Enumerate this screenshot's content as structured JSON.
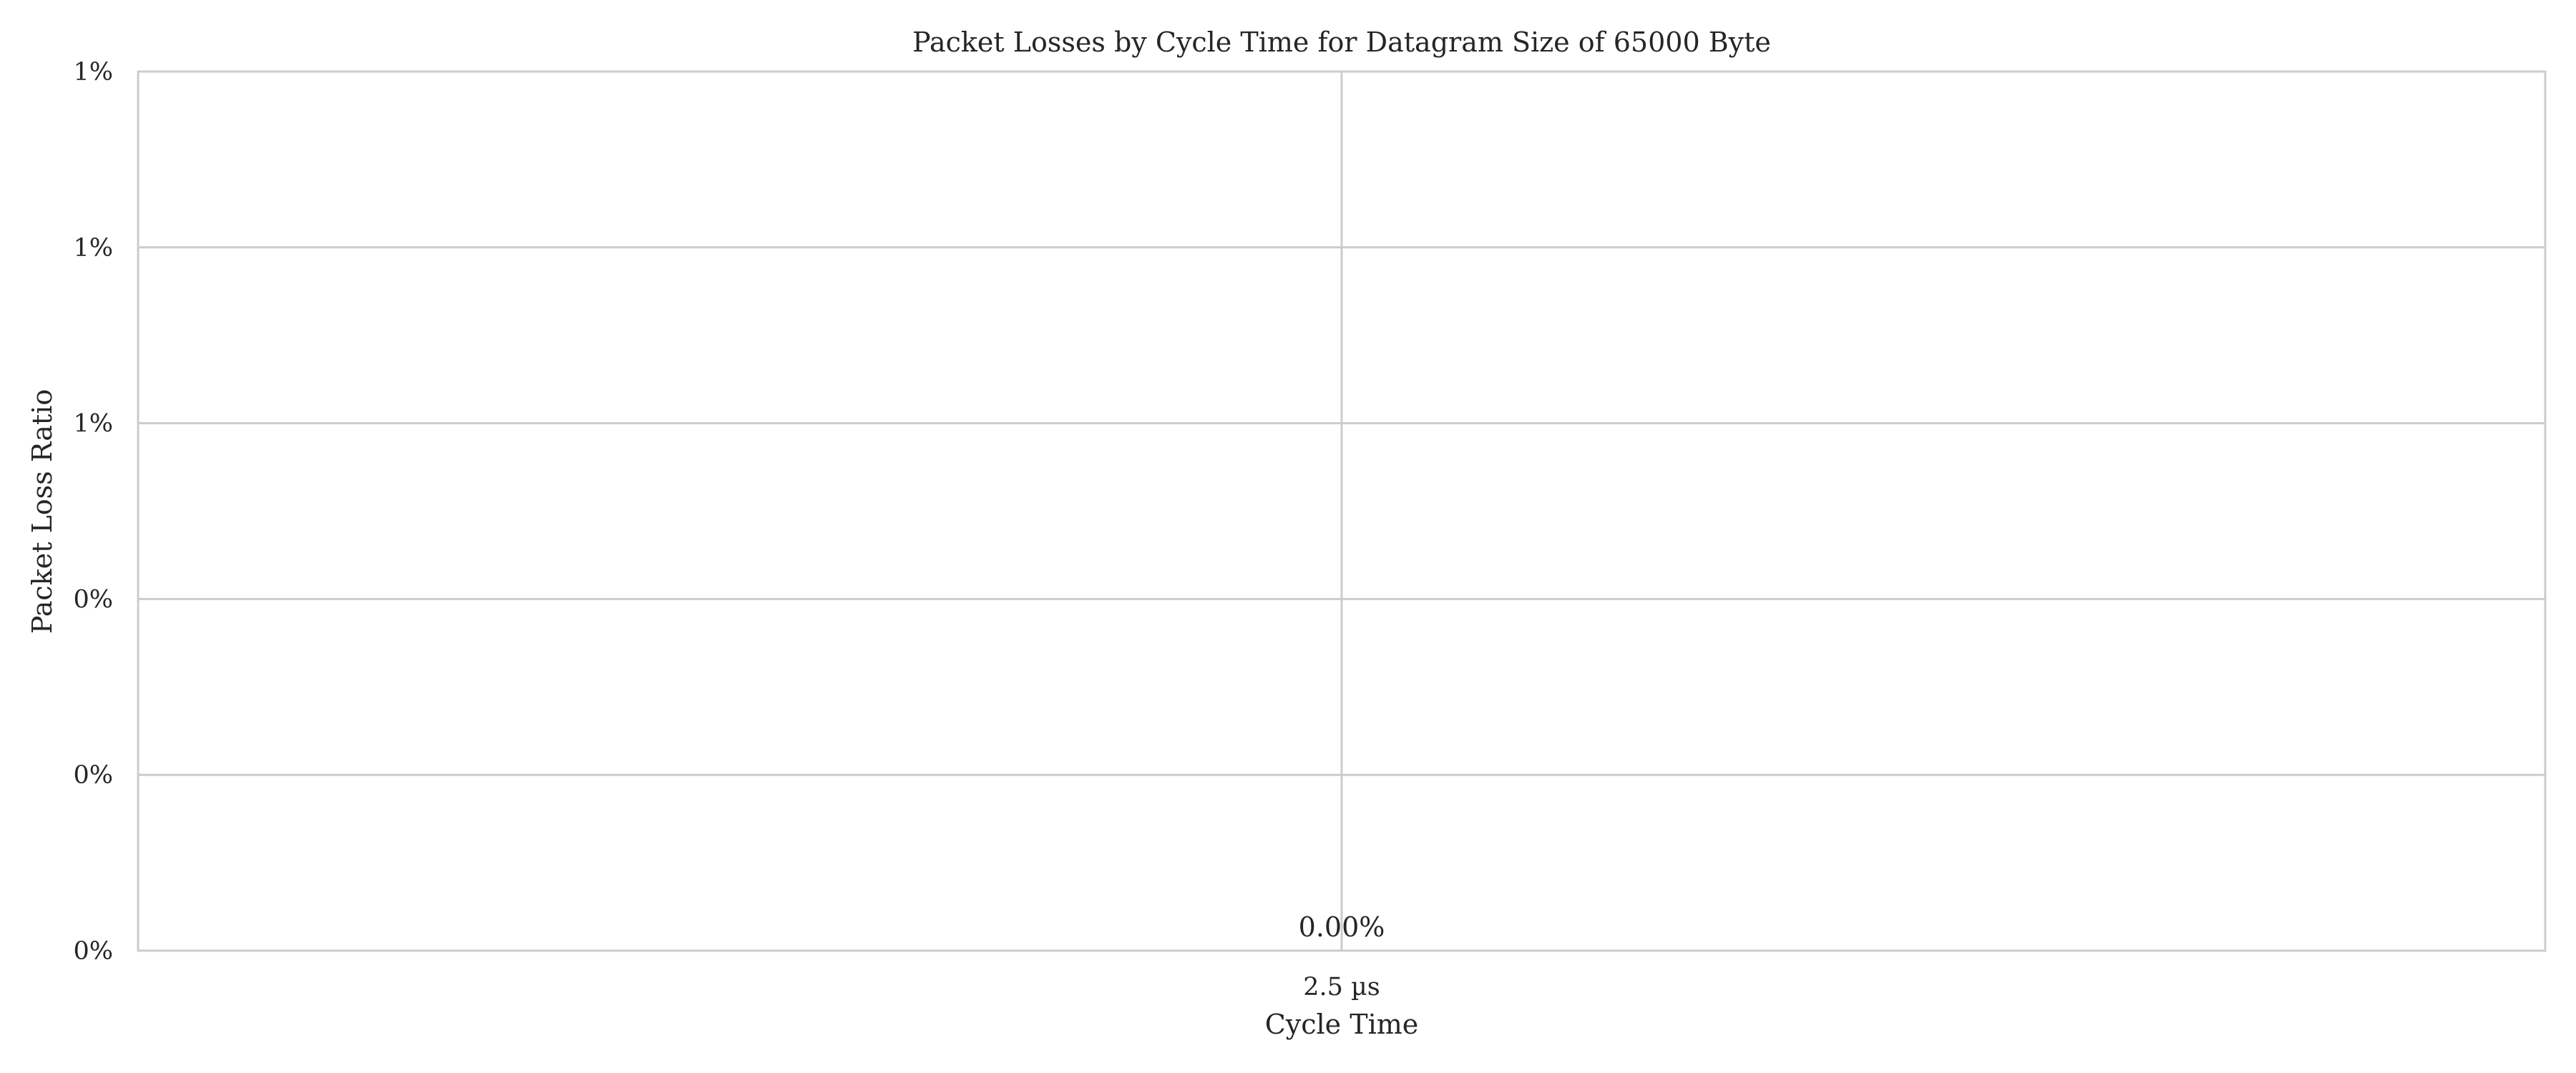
{
  "chart_data": {
    "type": "bar",
    "title": "Packet Losses by Cycle Time for Datagram Size of 65000 Byte",
    "xlabel": "Cycle Time",
    "ylabel": "Packet Loss Ratio",
    "categories": [
      "2.5 µs"
    ],
    "values": [
      0.0
    ],
    "data_labels": [
      "0.00%"
    ],
    "y_ticks": [
      0,
      0.002,
      0.004,
      0.006,
      0.008,
      0.01
    ],
    "y_tick_labels": [
      "0%",
      "0%",
      "0%",
      "1%",
      "1%",
      "1%"
    ],
    "ylim": [
      0,
      0.01
    ],
    "grid": true,
    "legend": "none",
    "colors": {
      "grid": "#cccccc",
      "text": "#262626",
      "bar": "#4c72b0"
    }
  }
}
